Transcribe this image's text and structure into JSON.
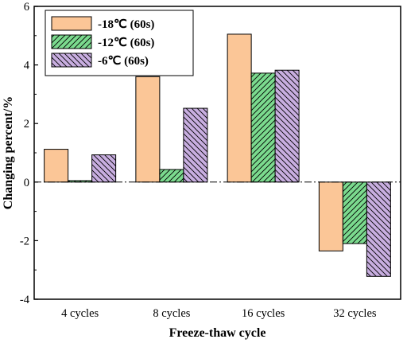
{
  "chart_data": {
    "type": "bar",
    "title": "",
    "xlabel": "Freeze-thaw cycle",
    "ylabel": "Changing percent/%",
    "categories": [
      "4 cycles",
      "8 cycles",
      "16 cycles",
      "32 cycles"
    ],
    "ylim": [
      -4,
      6
    ],
    "yticks": [
      -4,
      -2,
      0,
      2,
      4,
      6
    ],
    "ytick_labels": [
      "-4",
      "-2",
      "0",
      "2",
      "4",
      "6"
    ],
    "grid": false,
    "reference_line": {
      "y": 0,
      "style": "dash-dot"
    },
    "legend": {
      "placement": "top-left",
      "boxed": true
    },
    "series": [
      {
        "name": "-18℃ (60s)",
        "values": [
          1.12,
          3.6,
          5.05,
          -2.35
        ],
        "color": "#FBC697",
        "pattern": "solid"
      },
      {
        "name": "-12℃ (60s)",
        "values": [
          0.05,
          0.43,
          3.72,
          -2.1
        ],
        "color": "#7BDA8E",
        "pattern": "hatch-forward"
      },
      {
        "name": "-6℃ (60s)",
        "values": [
          0.93,
          2.52,
          3.82,
          -3.22
        ],
        "color": "#C8AEE0",
        "pattern": "hatch-back"
      }
    ]
  }
}
